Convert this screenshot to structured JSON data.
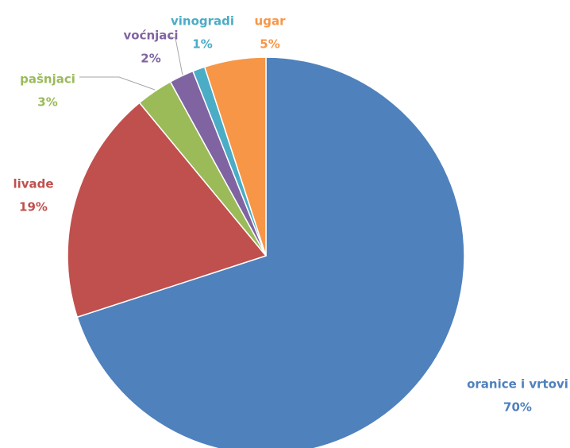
{
  "chart_data": {
    "type": "pie",
    "categories": [
      "oranice i vrtovi",
      "livade",
      "pašnjaci",
      "voćnjaci",
      "vinogradi",
      "ugar"
    ],
    "values": [
      70,
      19,
      3,
      2,
      1,
      5
    ],
    "value_labels": [
      "70%",
      "19%",
      "3%",
      "2%",
      "1%",
      "5%"
    ],
    "colors": [
      "#4f81bd",
      "#c0504d",
      "#9bbb59",
      "#8064a2",
      "#4bacc6",
      "#f79646"
    ]
  }
}
